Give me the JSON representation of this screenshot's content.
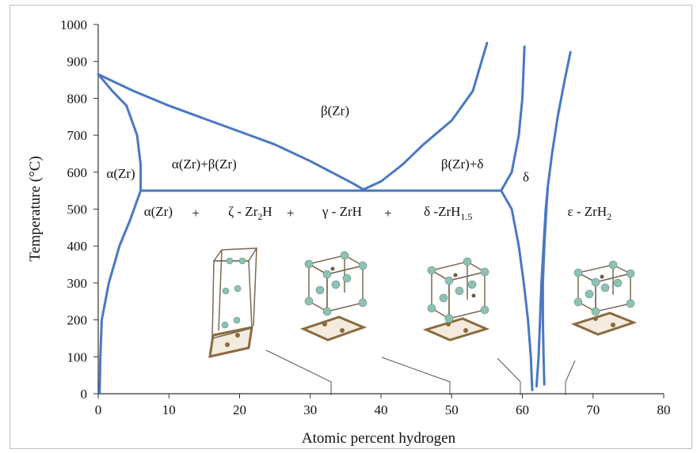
{
  "chart_data": {
    "type": "line",
    "xlabel": "Atomic percent hydrogen",
    "ylabel": "Temperature (°C)",
    "xlim": [
      0,
      80
    ],
    "ylim": [
      0,
      1000
    ],
    "x_ticks": [
      "0",
      "10",
      "20",
      "30",
      "40",
      "50",
      "60",
      "70",
      "80"
    ],
    "y_ticks": [
      "0",
      "100",
      "200",
      "300",
      "400",
      "500",
      "600",
      "700",
      "800",
      "900",
      "1000"
    ],
    "grid": false,
    "series": [
      {
        "points": [
          [
            0.2,
            0
          ],
          [
            0.3,
            100
          ],
          [
            0.5,
            200
          ],
          [
            1.5,
            300
          ],
          [
            3,
            400
          ],
          [
            4.5,
            470
          ],
          [
            6,
            550
          ]
        ]
      },
      {
        "points": [
          [
            0,
            865
          ],
          [
            2,
            820
          ],
          [
            4,
            780
          ],
          [
            5.5,
            700
          ],
          [
            6,
            620
          ],
          [
            6,
            550
          ]
        ]
      },
      {
        "points": [
          [
            0,
            865
          ],
          [
            5,
            820
          ],
          [
            10,
            780
          ],
          [
            15,
            745
          ],
          [
            20,
            710
          ],
          [
            25,
            675
          ],
          [
            30,
            630
          ],
          [
            33,
            600
          ],
          [
            36,
            570
          ],
          [
            37.5,
            553
          ]
        ]
      },
      {
        "points": [
          [
            6,
            550
          ],
          [
            37.5,
            550
          ],
          [
            57,
            550
          ]
        ]
      },
      {
        "points": [
          [
            37.5,
            553
          ],
          [
            40,
            575
          ],
          [
            43,
            620
          ],
          [
            46,
            675
          ],
          [
            50,
            740
          ],
          [
            53,
            820
          ],
          [
            55,
            950
          ]
        ]
      },
      {
        "points": [
          [
            57,
            550
          ],
          [
            58.5,
            600
          ],
          [
            59.5,
            700
          ],
          [
            60,
            800
          ],
          [
            60.3,
            940
          ]
        ]
      },
      {
        "points": [
          [
            57,
            550
          ],
          [
            58.5,
            500
          ],
          [
            59.5,
            400
          ],
          [
            60.2,
            300
          ],
          [
            60.8,
            200
          ],
          [
            61.2,
            100
          ],
          [
            61.4,
            10
          ]
        ]
      },
      {
        "points": [
          [
            62,
            20
          ],
          [
            62.3,
            100
          ],
          [
            62.5,
            200
          ],
          [
            62.7,
            300
          ],
          [
            63,
            400
          ],
          [
            63.3,
            500
          ],
          [
            63.6,
            560
          ],
          [
            64.2,
            650
          ],
          [
            65,
            750
          ],
          [
            66,
            850
          ],
          [
            66.8,
            925
          ]
        ]
      },
      {
        "points": [
          [
            63.1,
            25
          ],
          [
            63,
            100
          ],
          [
            62.9,
            200
          ],
          [
            62.9,
            300
          ],
          [
            63.1,
            400
          ],
          [
            63.4,
            500
          ],
          [
            63.6,
            560
          ]
        ]
      }
    ],
    "region_labels": [
      {
        "text": "β(Zr)",
        "x": 33.5,
        "y": 755
      },
      {
        "text": "α(Zr)",
        "x": 3.2,
        "y": 585
      },
      {
        "text": "α(Zr)+β(Zr)",
        "x": 15,
        "y": 610
      },
      {
        "text": "β(Zr)+δ",
        "x": 51.5,
        "y": 610
      },
      {
        "text": "δ",
        "x": 60.5,
        "y": 575
      },
      {
        "text": "α(Zr)",
        "x": 8.5,
        "y": 482
      },
      {
        "text": "+",
        "x": 13.8,
        "y": 478
      },
      {
        "text": "+",
        "x": 27.2,
        "y": 478
      },
      {
        "text": "+",
        "x": 41,
        "y": 478
      },
      {
        "text": "ε - ZrH",
        "sub": "2",
        "x": 69.5,
        "y": 482
      }
    ],
    "phase_labels": [
      {
        "pre": "ζ - Zr",
        "sub": "2",
        "post": "H",
        "x": 21.5,
        "y": 482
      },
      {
        "pre": "γ - ZrH",
        "sub": "",
        "post": "",
        "x": 34.5,
        "y": 482
      },
      {
        "pre": "δ -ZrH",
        "sub": "1.5",
        "post": "",
        "x": 49.5,
        "y": 482
      }
    ]
  }
}
